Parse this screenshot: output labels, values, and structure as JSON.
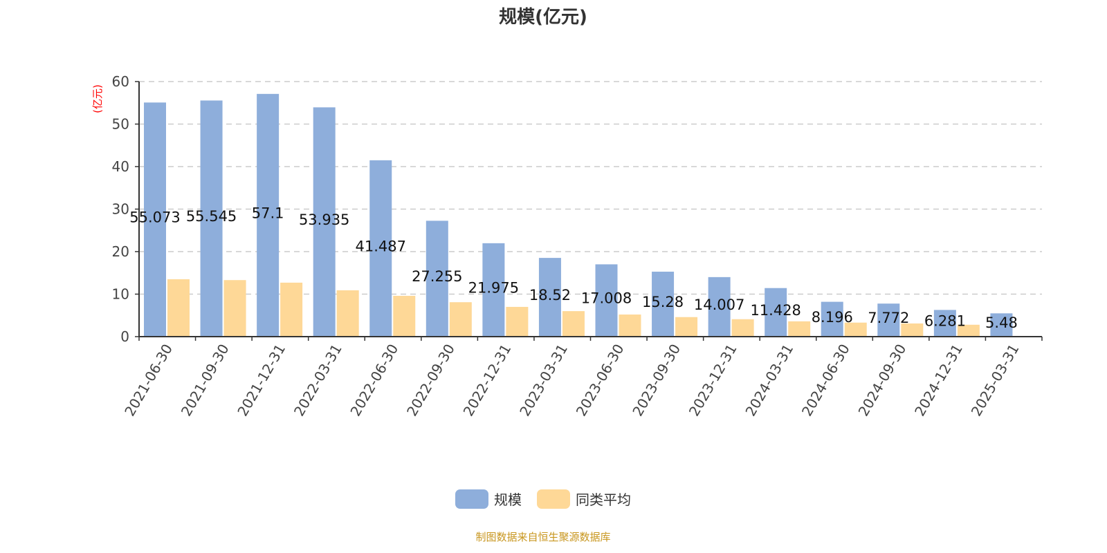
{
  "chart_data": {
    "type": "bar",
    "title": "规模(亿元)",
    "ylabel": "(亿元)",
    "xlabel": "",
    "ylim": [
      0,
      60
    ],
    "yticks": [
      0,
      10,
      20,
      30,
      40,
      50,
      60
    ],
    "grid": true,
    "legend_position": "bottom",
    "categories": [
      "2021-06-30",
      "2021-09-30",
      "2021-12-31",
      "2022-03-31",
      "2022-06-30",
      "2022-09-30",
      "2022-12-31",
      "2023-03-31",
      "2023-06-30",
      "2023-09-30",
      "2023-12-31",
      "2024-03-31",
      "2024-06-30",
      "2024-09-30",
      "2024-12-31",
      "2025-03-31"
    ],
    "series": [
      {
        "name": "规模",
        "color": "#8eaedb",
        "labels": [
          "55.073",
          "55.545",
          "57.1",
          "53.935",
          "41.487",
          "27.255",
          "21.975",
          "18.52",
          "17.008",
          "15.28",
          "14.007",
          "11.428",
          "8.196",
          "7.772",
          "6.281",
          "5.48"
        ],
        "values": [
          55.073,
          55.545,
          57.1,
          53.935,
          41.487,
          27.255,
          21.975,
          18.52,
          17.008,
          15.28,
          14.007,
          11.428,
          8.196,
          7.772,
          6.281,
          5.48
        ]
      },
      {
        "name": "同类平均",
        "color": "#fed897",
        "values": [
          13.5,
          13.3,
          12.7,
          10.9,
          9.6,
          8.1,
          7.0,
          6.0,
          5.2,
          4.6,
          4.1,
          3.6,
          3.3,
          3.1,
          2.8,
          null
        ]
      }
    ]
  },
  "source": "制图数据来自恒生聚源数据库"
}
